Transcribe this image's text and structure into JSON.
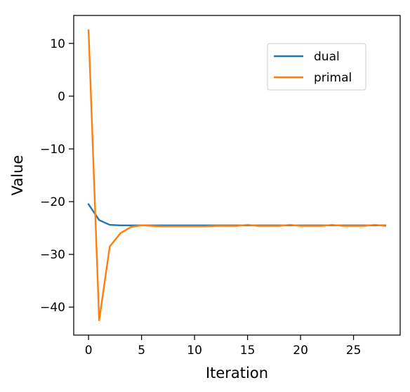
{
  "chart_data": {
    "type": "line",
    "title": "",
    "xlabel": "Iteration",
    "ylabel": "Value",
    "xlim": [
      -1.4,
      29.4
    ],
    "ylim": [
      -45.3,
      15.3
    ],
    "x_ticks": [
      0,
      5,
      10,
      15,
      20,
      25
    ],
    "x_tick_labels": [
      "0",
      "5",
      "10",
      "15",
      "20",
      "25"
    ],
    "y_ticks": [
      10,
      0,
      -10,
      -20,
      -30,
      -40
    ],
    "y_tick_labels": [
      "10",
      "0",
      "−10",
      "−20",
      "−30",
      "−40"
    ],
    "grid": false,
    "legend_position": "upper right",
    "x": [
      0,
      1,
      2,
      3,
      4,
      5,
      6,
      7,
      8,
      9,
      10,
      11,
      12,
      13,
      14,
      15,
      16,
      17,
      18,
      19,
      20,
      21,
      22,
      23,
      24,
      25,
      26,
      27,
      28
    ],
    "series": [
      {
        "name": "dual",
        "color": "#1f77b4",
        "values": [
          -20.5,
          -23.5,
          -24.4,
          -24.5,
          -24.5,
          -24.5,
          -24.5,
          -24.5,
          -24.5,
          -24.5,
          -24.5,
          -24.5,
          -24.5,
          -24.5,
          -24.5,
          -24.5,
          -24.5,
          -24.5,
          -24.5,
          -24.5,
          -24.5,
          -24.5,
          -24.5,
          -24.5,
          -24.5,
          -24.5,
          -24.5,
          -24.5,
          -24.5
        ]
      },
      {
        "name": "primal",
        "color": "#ff7f0e",
        "values": [
          12.5,
          -42.5,
          -28.5,
          -26.0,
          -24.8,
          -24.5,
          -24.6,
          -24.7,
          -24.7,
          -24.7,
          -24.7,
          -24.7,
          -24.6,
          -24.6,
          -24.6,
          -24.4,
          -24.6,
          -24.6,
          -24.6,
          -24.4,
          -24.6,
          -24.6,
          -24.6,
          -24.4,
          -24.6,
          -24.6,
          -24.6,
          -24.4,
          -24.6
        ]
      }
    ]
  }
}
